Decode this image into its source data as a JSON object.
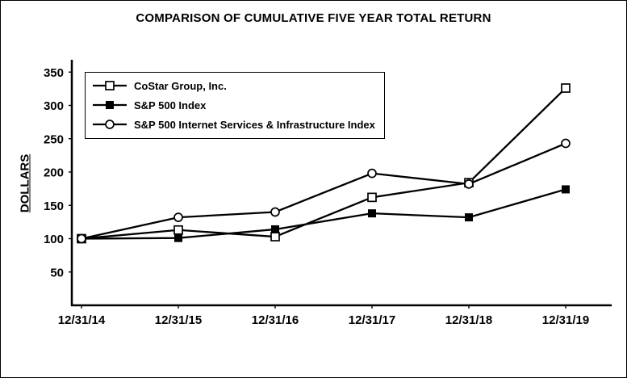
{
  "window": {
    "background_color": "#ffffff",
    "border_color": "#000000"
  },
  "chart_data": {
    "type": "line",
    "title": "COMPARISON OF CUMULATIVE FIVE YEAR TOTAL RETURN",
    "xlabel": "",
    "ylabel": "DOLLARS",
    "categories": [
      "12/31/14",
      "12/31/15",
      "12/31/16",
      "12/31/17",
      "12/31/18",
      "12/31/19"
    ],
    "y_ticks": [
      50,
      100,
      150,
      200,
      250,
      300,
      350
    ],
    "ylim": [
      0,
      360
    ],
    "grid": false,
    "legend_position": "upper-left-inside",
    "line_color": "#000000",
    "marker_fill_open": "#ffffff",
    "series": [
      {
        "name": "CoStar Group, Inc.",
        "marker": "open-square",
        "values": [
          100,
          113,
          103,
          162,
          184,
          326
        ]
      },
      {
        "name": "S&P 500 Index",
        "marker": "filled-square",
        "values": [
          100,
          101,
          114,
          138,
          132,
          174
        ]
      },
      {
        "name": "S&P 500 Internet Services & Infrastructure Index",
        "marker": "open-circle",
        "values": [
          100,
          132,
          140,
          198,
          182,
          243
        ]
      }
    ]
  }
}
